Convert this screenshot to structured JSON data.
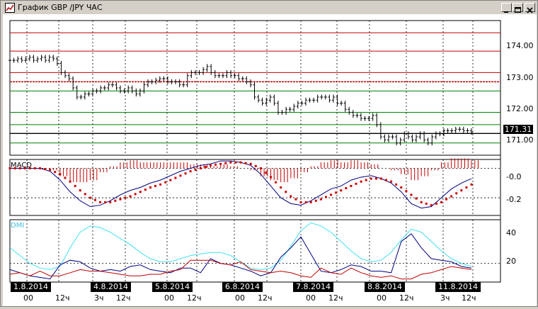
{
  "window": {
    "title": "График GBP /JPY ЧАС",
    "buttons": [
      "minimize",
      "maximize",
      "close"
    ]
  },
  "price_pane": {
    "y_ticks": [
      "174.00",
      "173.00",
      "172.00",
      "171.00"
    ],
    "last_price": "171.31"
  },
  "macd_pane": {
    "label": "MACD",
    "y_ticks": [
      "-0.0",
      "-0.2"
    ]
  },
  "dmi_pane": {
    "label": "DMI",
    "y_ticks": [
      "40",
      "20"
    ]
  },
  "x_axis": {
    "dates": [
      "1.8.2014",
      "4.8.2014",
      "5.8.2014",
      "6.8.2014",
      "7.8.2014",
      "8.8.2014",
      "11.8.2014"
    ],
    "hours": [
      "00",
      "12ч",
      "3ч",
      "12ч",
      "00",
      "12ч",
      "00",
      "12ч",
      "00",
      "12ч",
      "00",
      "12ч",
      "3ч",
      "12ч"
    ]
  },
  "colors": {
    "candles": "#000000",
    "resistance": "#c00000",
    "support": "#008000",
    "macd_hist": "#c00000",
    "macd_signal": "#d00000",
    "macd_line": "#000080",
    "adx": "#40e0f0",
    "plus_di": "#000080",
    "minus_di": "#c00000"
  },
  "chart_data": [
    {
      "type": "line",
      "name_ref": "price",
      "y_range": [
        170.6,
        175.0
      ],
      "resistance_levels": [
        174.6,
        174.0,
        173.3,
        173.0
      ],
      "support_levels": [
        172.7,
        172.0,
        171.6,
        171.0
      ],
      "last": 171.31,
      "close": [
        173.7,
        173.7,
        173.75,
        173.7,
        173.75,
        173.8,
        173.7,
        173.75,
        173.8,
        173.7,
        173.8,
        173.75,
        173.6,
        173.3,
        173.2,
        173.1,
        172.8,
        172.5,
        172.5,
        172.6,
        172.6,
        172.7,
        172.7,
        172.8,
        172.8,
        172.9,
        172.9,
        172.8,
        172.7,
        172.7,
        172.8,
        172.7,
        172.6,
        172.7,
        172.9,
        173.0,
        173.0,
        173.05,
        173.1,
        173.1,
        173.0,
        173.0,
        173.0,
        172.9,
        172.9,
        173.2,
        173.3,
        173.3,
        173.3,
        173.4,
        173.5,
        173.3,
        173.2,
        173.2,
        173.2,
        173.3,
        173.2,
        173.2,
        173.1,
        173.1,
        173.0,
        172.9,
        172.5,
        172.4,
        172.3,
        172.4,
        172.5,
        172.3,
        172.0,
        172.0,
        172.1,
        172.1,
        172.2,
        172.3,
        172.3,
        172.4,
        172.4,
        172.4,
        172.5,
        172.5,
        172.5,
        172.4,
        172.5,
        172.3,
        172.3,
        172.1,
        172.0,
        171.9,
        171.9,
        171.8,
        171.8,
        171.8,
        171.9,
        171.6,
        171.2,
        171.1,
        171.2,
        171.2,
        171.0,
        171.1,
        171.3,
        171.2,
        171.1,
        171.2,
        171.3,
        171.1,
        171.0,
        171.2,
        171.3,
        171.3,
        171.4,
        171.4,
        171.4,
        171.45,
        171.45,
        171.4,
        171.4,
        171.35
      ]
    },
    {
      "type": "bar",
      "name_ref": "macd",
      "y_ticks_values": [
        0.0,
        -0.2
      ],
      "y_range": [
        0.06,
        -0.32
      ],
      "macd_line": [
        0.0,
        0.0,
        0.0,
        0.0,
        -0.02,
        -0.08,
        -0.16,
        -0.22,
        -0.26,
        -0.25,
        -0.22,
        -0.18,
        -0.15,
        -0.13,
        -0.1,
        -0.08,
        -0.05,
        -0.02,
        0.0,
        0.02,
        0.03,
        0.05,
        0.05,
        0.04,
        0.02,
        -0.04,
        -0.12,
        -0.2,
        -0.24,
        -0.25,
        -0.22,
        -0.18,
        -0.14,
        -0.12,
        -0.08,
        -0.06,
        -0.05,
        -0.07,
        -0.1,
        -0.16,
        -0.24,
        -0.27,
        -0.26,
        -0.2,
        -0.14,
        -0.1,
        -0.07
      ],
      "signal_line": [
        0.0,
        0.0,
        0.0,
        0.0,
        -0.01,
        -0.04,
        -0.09,
        -0.15,
        -0.2,
        -0.23,
        -0.23,
        -0.21,
        -0.19,
        -0.16,
        -0.13,
        -0.11,
        -0.08,
        -0.05,
        -0.02,
        0.0,
        0.02,
        0.03,
        0.04,
        0.04,
        0.03,
        0.0,
        -0.06,
        -0.13,
        -0.19,
        -0.23,
        -0.23,
        -0.21,
        -0.18,
        -0.15,
        -0.12,
        -0.09,
        -0.07,
        -0.07,
        -0.09,
        -0.13,
        -0.18,
        -0.23,
        -0.25,
        -0.23,
        -0.19,
        -0.15,
        -0.11
      ]
    },
    {
      "type": "line",
      "name_ref": "dmi",
      "y_ticks_values": [
        40,
        20
      ],
      "y_range": [
        48,
        8
      ],
      "adx": [
        30,
        25,
        20,
        17,
        16,
        18,
        30,
        40,
        44,
        43,
        40,
        36,
        32,
        27,
        23,
        21,
        21,
        23,
        25,
        26,
        27,
        27,
        25,
        21,
        17,
        16,
        17,
        22,
        31,
        41,
        46,
        44,
        40,
        34,
        28,
        23,
        21,
        22,
        27,
        35,
        42,
        40,
        34,
        28,
        23,
        20,
        18
      ],
      "plus_di": [
        16,
        14,
        12,
        11,
        10,
        19,
        22,
        21,
        17,
        15,
        16,
        15,
        18,
        19,
        16,
        15,
        14,
        17,
        17,
        14,
        23,
        20,
        19,
        17,
        15,
        12,
        14,
        24,
        30,
        37,
        26,
        15,
        14,
        16,
        19,
        18,
        15,
        15,
        14,
        34,
        39,
        30,
        23,
        22,
        21,
        18,
        17
      ],
      "minus_di": [
        13,
        14,
        12,
        15,
        12,
        12,
        14,
        16,
        15,
        15,
        14,
        13,
        12,
        12,
        13,
        13,
        15,
        16,
        22,
        22,
        22,
        20,
        19,
        21,
        16,
        15,
        14,
        15,
        14,
        12,
        11,
        17,
        14,
        13,
        17,
        14,
        12,
        11,
        12,
        10,
        10,
        13,
        14,
        16,
        18,
        17,
        16
      ]
    }
  ]
}
